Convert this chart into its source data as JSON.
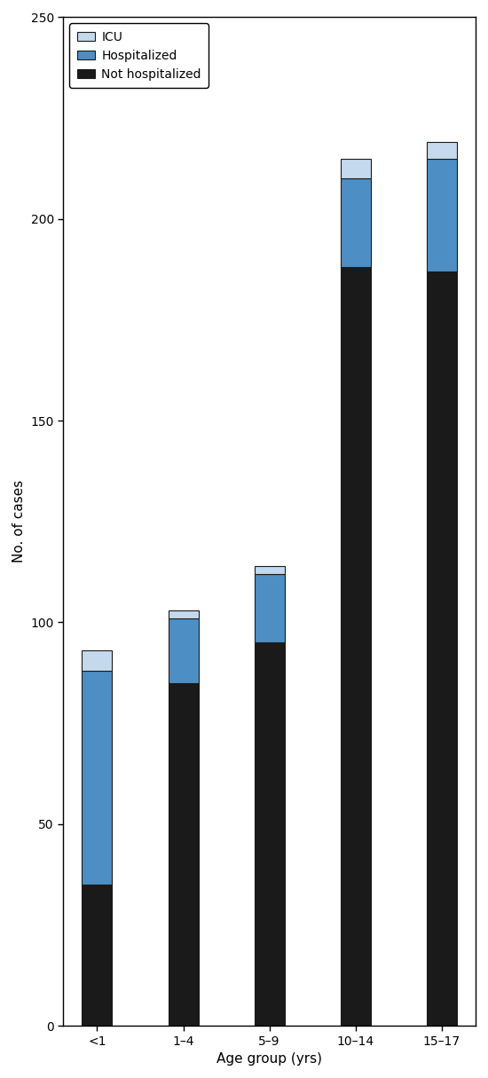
{
  "categories": [
    "<1",
    "1–4",
    "5–9",
    "10–14",
    "15–17"
  ],
  "not_hospitalized": [
    35,
    85,
    95,
    188,
    187
  ],
  "hospitalized": [
    53,
    16,
    17,
    22,
    28
  ],
  "icu": [
    5,
    2,
    2,
    5,
    4
  ],
  "color_not_hosp": "#1a1a1a",
  "color_hosp": "#4d8fc4",
  "color_icu": "#c5d9ed",
  "color_edge": "#1a1a1a",
  "xlabel": "Age group (yrs)",
  "ylabel": "No. of cases",
  "ylim": [
    0,
    250
  ],
  "yticks": [
    0,
    50,
    100,
    150,
    200,
    250
  ],
  "legend_labels": [
    "ICU",
    "Hospitalized",
    "Not hospitalized"
  ],
  "bar_width": 0.35,
  "figsize": [
    5.5,
    12.15
  ],
  "dpi": 100
}
